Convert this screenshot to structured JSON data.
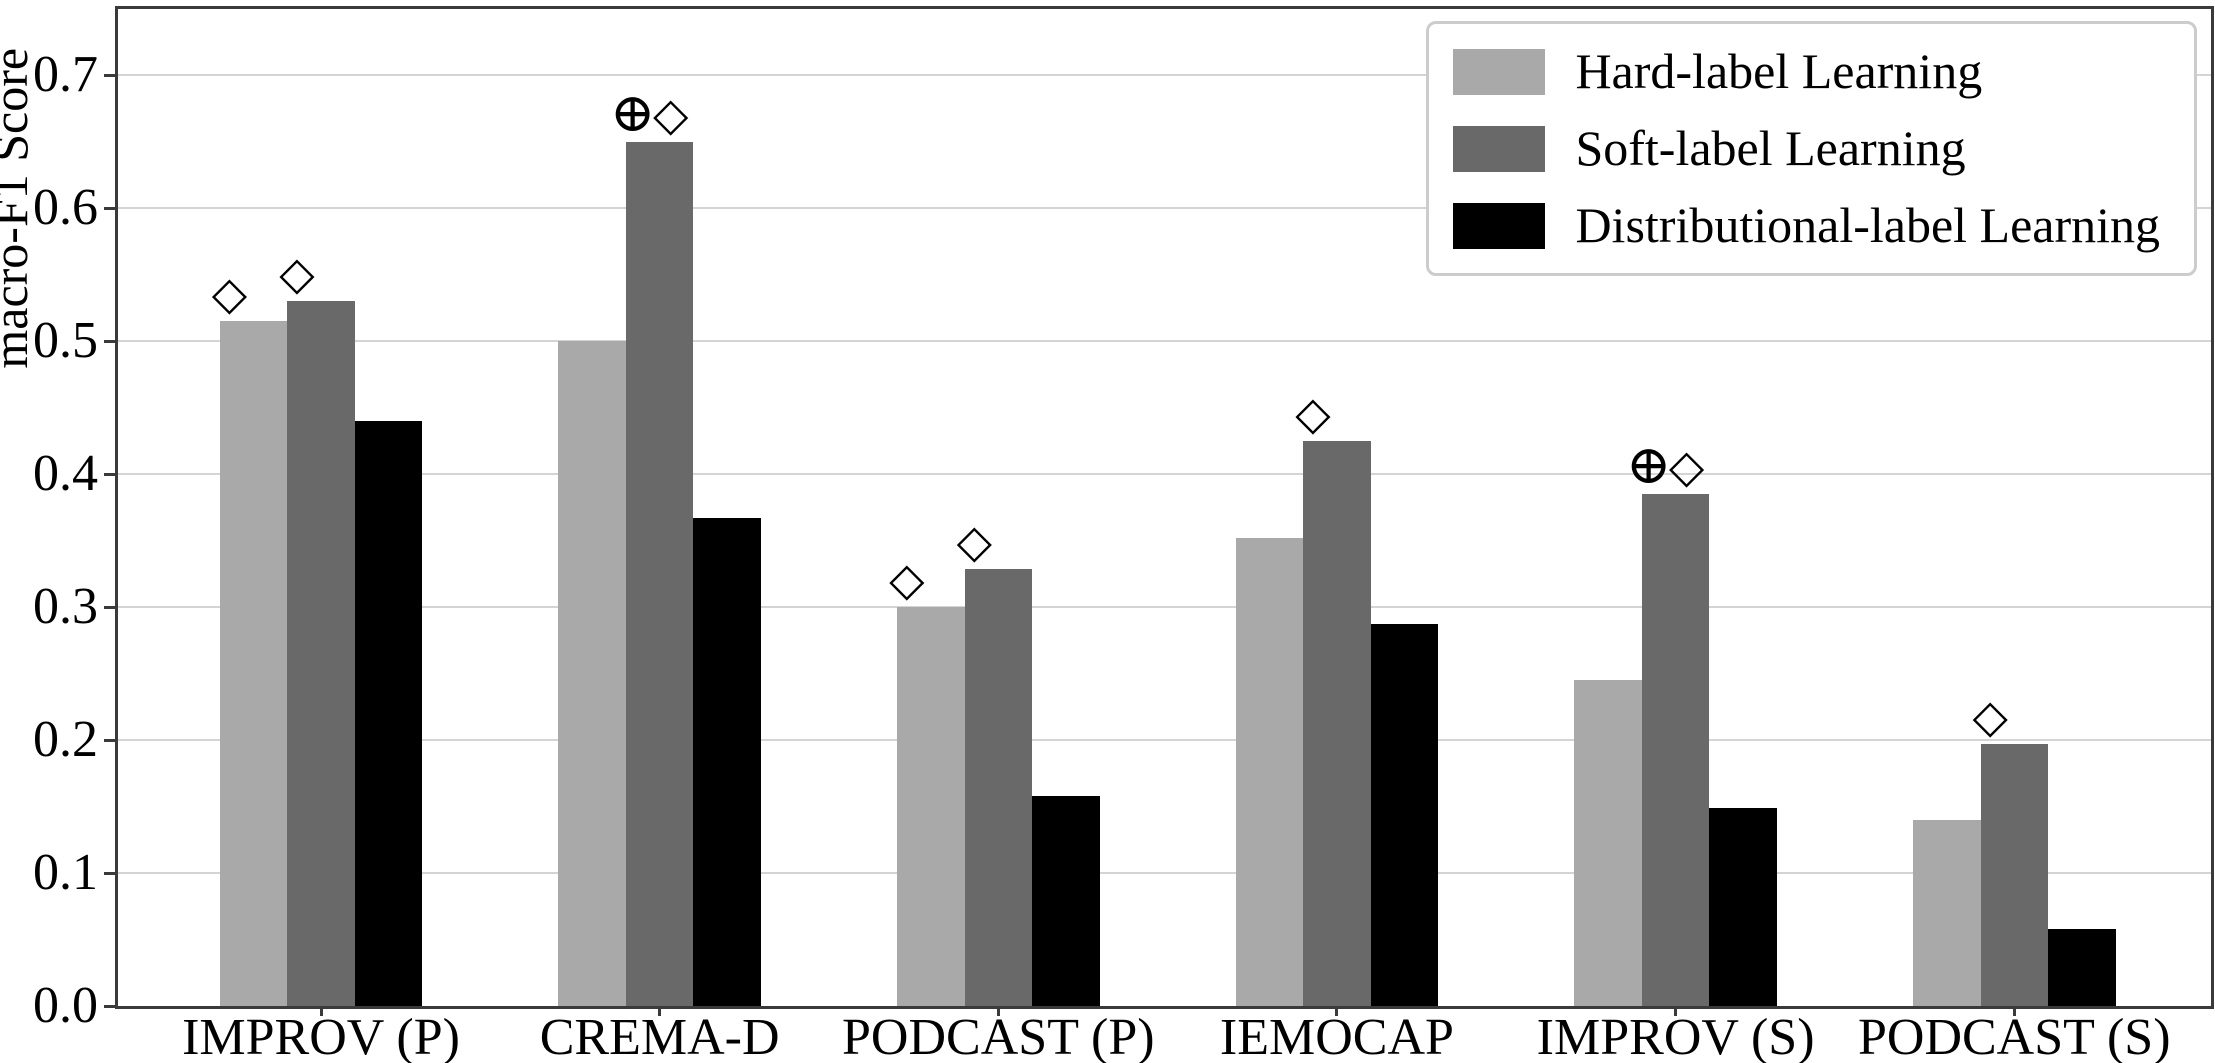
{
  "chart_data": {
    "type": "bar",
    "title": "",
    "xlabel": "",
    "ylabel": "macro-F1 Score",
    "ylim": [
      0.0,
      0.75
    ],
    "yticks": [
      "0.0",
      "0.1",
      "0.2",
      "0.3",
      "0.4",
      "0.5",
      "0.6",
      "0.7"
    ],
    "grid": "horizontal",
    "legend_position": "upper right",
    "categories": [
      "IMPROV (P)",
      "CREMA-D",
      "PODCAST (P)",
      "IEMOCAP",
      "IMPROV (S)",
      "PODCAST (S)"
    ],
    "series": [
      {
        "name": "Hard-label Learning",
        "color": "#a9a9a9",
        "values": [
          0.515,
          0.5,
          0.3,
          0.352,
          0.245,
          0.14
        ],
        "markers": [
          [
            "diamond"
          ],
          [],
          [
            "diamond"
          ],
          [],
          [],
          []
        ]
      },
      {
        "name": "Soft-label Learning",
        "color": "#696969",
        "values": [
          0.53,
          0.65,
          0.329,
          0.425,
          0.385,
          0.197
        ],
        "markers": [
          [
            "diamond"
          ],
          [
            "oplus",
            "diamond"
          ],
          [
            "diamond"
          ],
          [
            "diamond"
          ],
          [
            "oplus",
            "diamond"
          ],
          [
            "diamond"
          ]
        ]
      },
      {
        "name": "Distributional-label Learning",
        "color": "#000000",
        "values": [
          0.44,
          0.367,
          0.158,
          0.287,
          0.149,
          0.058
        ],
        "markers": [
          [],
          [],
          [],
          [],
          [],
          []
        ]
      }
    ],
    "marker_glyphs": {
      "oplus": "⊕",
      "diamond": "◇"
    }
  }
}
